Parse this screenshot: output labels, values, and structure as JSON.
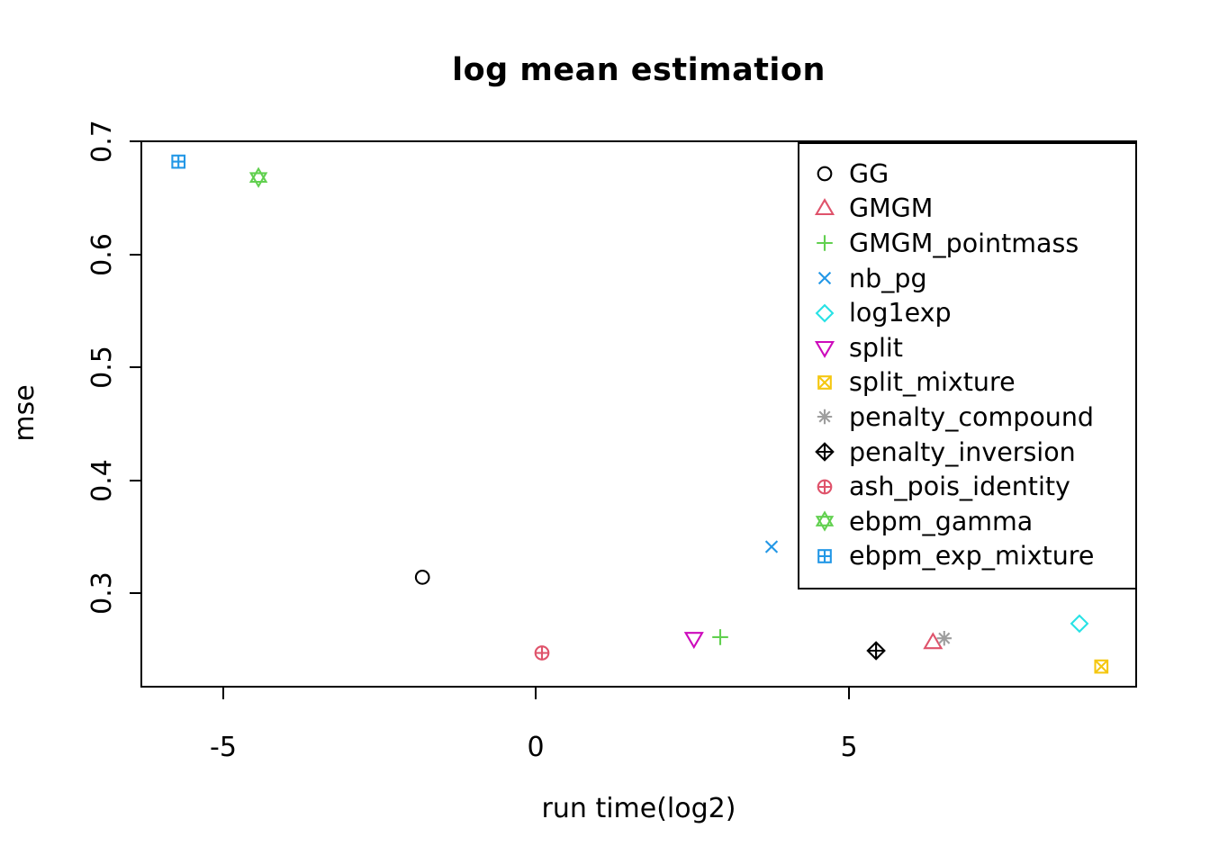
{
  "title": "log mean estimation",
  "axes": {
    "x": {
      "label": "run time(log2)",
      "ticks": [
        {
          "value": -5,
          "label": "-5"
        },
        {
          "value": 0,
          "label": "0"
        },
        {
          "value": 5,
          "label": "5"
        }
      ]
    },
    "y": {
      "label": "mse",
      "ticks": [
        {
          "value": 0.7,
          "label": "0.7"
        },
        {
          "value": 0.6,
          "label": "0.6"
        },
        {
          "value": 0.5,
          "label": "0.5"
        },
        {
          "value": 0.4,
          "label": "0.4"
        },
        {
          "value": 0.3,
          "label": "0.3"
        }
      ]
    }
  },
  "chart_data": {
    "type": "scatter",
    "title": "log mean estimation",
    "xlabel": "run time(log2)",
    "ylabel": "mse",
    "xlim": [
      -6.3,
      9.6
    ],
    "ylim": [
      0.217,
      0.7
    ],
    "x_ticks": [
      -5,
      0,
      5
    ],
    "y_ticks": [
      0.3,
      0.4,
      0.5,
      0.6,
      0.7
    ],
    "grid": false,
    "legend_position": "top-right",
    "series": [
      {
        "name": "GG",
        "marker": "circle",
        "color": "#000000",
        "points": [
          {
            "x": -1.81,
            "y": 0.314
          }
        ]
      },
      {
        "name": "GMGM",
        "marker": "triangle-up",
        "color": "#DF536B",
        "points": [
          {
            "x": 6.35,
            "y": 0.256
          }
        ]
      },
      {
        "name": "GMGM_pointmass",
        "marker": "plus",
        "color": "#61D04F",
        "points": [
          {
            "x": 2.95,
            "y": 0.261
          }
        ]
      },
      {
        "name": "nb_pg",
        "marker": "x",
        "color": "#2297E6",
        "points": [
          {
            "x": 3.77,
            "y": 0.341
          }
        ]
      },
      {
        "name": "log1exp",
        "marker": "diamond",
        "color": "#28E2E5",
        "points": [
          {
            "x": 8.69,
            "y": 0.273
          }
        ]
      },
      {
        "name": "split",
        "marker": "triangle-down",
        "color": "#CD0BBC",
        "points": [
          {
            "x": 2.53,
            "y": 0.26
          }
        ]
      },
      {
        "name": "split_mixture",
        "marker": "square-x",
        "color": "#F5C710",
        "points": [
          {
            "x": 9.04,
            "y": 0.235
          }
        ]
      },
      {
        "name": "penalty_compound",
        "marker": "asterisk",
        "color": "#9E9E9E",
        "points": [
          {
            "x": 6.53,
            "y": 0.26
          }
        ]
      },
      {
        "name": "penalty_inversion",
        "marker": "diamond-plus",
        "color": "#000000",
        "points": [
          {
            "x": 5.44,
            "y": 0.249
          }
        ]
      },
      {
        "name": "ash_pois_identity",
        "marker": "circle-plus",
        "color": "#DF536B",
        "points": [
          {
            "x": 0.1,
            "y": 0.247
          }
        ]
      },
      {
        "name": "ebpm_gamma",
        "marker": "star-of-david",
        "color": "#61D04F",
        "points": [
          {
            "x": -4.43,
            "y": 0.668
          }
        ]
      },
      {
        "name": "ebpm_exp_mixture",
        "marker": "square-plus",
        "color": "#2297E6",
        "points": [
          {
            "x": -5.71,
            "y": 0.682
          }
        ]
      }
    ]
  }
}
